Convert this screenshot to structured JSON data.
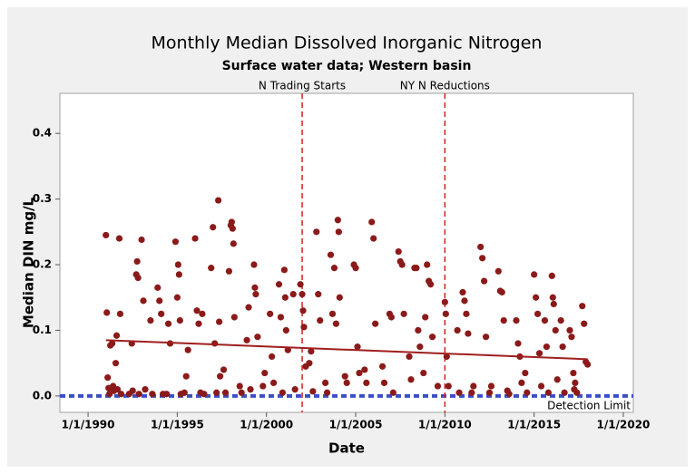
{
  "chart_data": {
    "type": "scatter",
    "title": "Monthly Median Dissolved Inorganic Nitrogen",
    "subtitle": "Surface water data; Western basin",
    "x_label": "Date",
    "y_label": "Median DIN mg/L",
    "xlim": [
      1988.42,
      2020.56
    ],
    "ylim": [
      -0.025,
      0.461
    ],
    "xticks": [
      {
        "value": 1990,
        "label": "1/1/1990"
      },
      {
        "value": 1995,
        "label": "1/1/1995"
      },
      {
        "value": 2000,
        "label": "1/1/2000"
      },
      {
        "value": 2005,
        "label": "1/1/2005"
      },
      {
        "value": 2010,
        "label": "1/1/2010"
      },
      {
        "value": 2015,
        "label": "1/1/2015"
      },
      {
        "value": 2020,
        "label": "1/1/2020"
      }
    ],
    "yticks": [
      {
        "value": 0,
        "label": "0.0"
      },
      0.1,
      0.2,
      0.3,
      0.4
    ],
    "grid": false,
    "series": [
      {
        "color": "#8b1a1a",
        "x": [
          1991.0,
          1991.05,
          1991.1,
          1991.15,
          1991.2,
          1991.25,
          1991.35,
          1991.4,
          1991.45,
          1991.55,
          1991.6,
          1991.65,
          1991.75,
          1991.8,
          1991.85,
          1992.3,
          1992.45,
          1992.5,
          1992.7,
          1992.75,
          1992.8,
          1992.85,
          1993.0,
          1993.1,
          1993.2,
          1993.5,
          1993.6,
          1993.9,
          1994.0,
          1994.1,
          1994.2,
          1994.4,
          1994.5,
          1994.6,
          1994.9,
          1995.0,
          1995.05,
          1995.1,
          1995.15,
          1995.2,
          1995.4,
          1995.5,
          1995.6,
          1996.0,
          1996.1,
          1996.2,
          1996.3,
          1996.4,
          1996.5,
          1996.9,
          1997.0,
          1997.1,
          1997.2,
          1997.3,
          1997.35,
          1997.4,
          1997.6,
          1997.7,
          1997.9,
          1998.0,
          1998.05,
          1998.1,
          1998.15,
          1998.2,
          1998.5,
          1998.6,
          1998.9,
          1999.0,
          1999.1,
          1999.3,
          1999.35,
          1999.4,
          1999.5,
          1999.8,
          1999.9,
          2000.2,
          2000.3,
          2000.4,
          2000.7,
          2000.8,
          2000.9,
          2001.0,
          2001.05,
          2001.1,
          2001.2,
          2001.5,
          2001.6,
          2001.9,
          2002.0,
          2002.05,
          2002.1,
          2002.2,
          2002.4,
          2002.5,
          2002.6,
          2002.8,
          2002.9,
          2003.0,
          2003.3,
          2003.4,
          2003.6,
          2003.7,
          2003.8,
          2003.9,
          2004.0,
          2004.05,
          2004.1,
          2004.4,
          2004.5,
          2004.9,
          2005.0,
          2005.1,
          2005.2,
          2005.5,
          2005.6,
          2005.9,
          2006.0,
          2006.1,
          2006.5,
          2006.6,
          2006.9,
          2007.0,
          2007.1,
          2007.4,
          2007.5,
          2007.6,
          2007.7,
          2008.0,
          2008.1,
          2008.3,
          2008.4,
          2008.5,
          2008.6,
          2008.8,
          2008.9,
          2009.0,
          2009.1,
          2009.2,
          2009.3,
          2009.6,
          2010.0,
          2010.05,
          2010.1,
          2010.2,
          2010.7,
          2010.8,
          2011.0,
          2011.1,
          2011.2,
          2011.3,
          2011.5,
          2011.6,
          2012.0,
          2012.1,
          2012.2,
          2012.3,
          2012.5,
          2012.6,
          2013.0,
          2013.1,
          2013.2,
          2013.3,
          2013.5,
          2013.6,
          2014.0,
          2014.1,
          2014.2,
          2014.3,
          2014.5,
          2014.6,
          2015.0,
          2015.1,
          2015.2,
          2015.3,
          2015.4,
          2015.6,
          2015.7,
          2015.8,
          2016.0,
          2016.05,
          2016.1,
          2016.2,
          2016.3,
          2016.5,
          2016.6,
          2016.7,
          2017.0,
          2017.1,
          2017.2,
          2017.25,
          2017.3,
          2017.4,
          2017.7,
          2017.8,
          2017.9,
          2018.0
        ],
        "values": [
          0.245,
          0.127,
          0.028,
          0.012,
          0.003,
          0.077,
          0.08,
          0.015,
          0.008,
          0.05,
          0.092,
          0.01,
          0.24,
          0.125,
          0.003,
          0.003,
          0.08,
          0.008,
          0.185,
          0.205,
          0.18,
          0.003,
          0.238,
          0.145,
          0.01,
          0.115,
          0.003,
          0.165,
          0.145,
          0.125,
          0.003,
          0.003,
          0.11,
          0.08,
          0.235,
          0.15,
          0.2,
          0.185,
          0.115,
          0.003,
          0.005,
          0.03,
          0.07,
          0.24,
          0.13,
          0.11,
          0.005,
          0.125,
          0.003,
          0.195,
          0.257,
          0.08,
          0.005,
          0.298,
          0.113,
          0.03,
          0.04,
          0.005,
          0.19,
          0.26,
          0.265,
          0.255,
          0.232,
          0.12,
          0.015,
          0.005,
          0.085,
          0.135,
          0.01,
          0.2,
          0.165,
          0.155,
          0.09,
          0.015,
          0.035,
          0.125,
          0.06,
          0.02,
          0.17,
          0.12,
          0.005,
          0.192,
          0.15,
          0.1,
          0.07,
          0.155,
          0.01,
          0.17,
          0.155,
          0.13,
          0.105,
          0.045,
          0.05,
          0.068,
          0.007,
          0.25,
          0.155,
          0.115,
          0.02,
          0.005,
          0.215,
          0.125,
          0.195,
          0.11,
          0.268,
          0.25,
          0.15,
          0.03,
          0.02,
          0.2,
          0.195,
          0.075,
          0.035,
          0.04,
          0.02,
          0.265,
          0.24,
          0.11,
          0.045,
          0.02,
          0.125,
          0.12,
          0.005,
          0.22,
          0.205,
          0.2,
          0.125,
          0.06,
          0.025,
          0.195,
          0.195,
          0.1,
          0.075,
          0.035,
          0.12,
          0.2,
          0.175,
          0.17,
          0.09,
          0.015,
          0.143,
          0.125,
          0.06,
          0.015,
          0.1,
          0.005,
          0.158,
          0.145,
          0.125,
          0.095,
          0.005,
          0.015,
          0.227,
          0.21,
          0.175,
          0.09,
          0.005,
          0.015,
          0.19,
          0.16,
          0.158,
          0.115,
          0.008,
          0.003,
          0.115,
          0.08,
          0.06,
          0.02,
          0.035,
          0.005,
          0.185,
          0.15,
          0.125,
          0.065,
          0.015,
          0.115,
          0.075,
          0.005,
          0.183,
          0.15,
          0.14,
          0.1,
          0.025,
          0.115,
          0.075,
          0.005,
          0.1,
          0.09,
          0.035,
          0.01,
          0.02,
          0.005,
          0.137,
          0.11,
          0.052,
          0.048
        ]
      }
    ],
    "trend": {
      "color": "#a01e1e",
      "x": [
        1991,
        2018
      ],
      "values": [
        0.085,
        0.056
      ]
    },
    "reference_lines": [
      {
        "x": 2002,
        "label": "N Trading Starts",
        "color": "#d42020"
      },
      {
        "x": 2010,
        "label": "NY N Reductions",
        "color": "#d42020"
      }
    ],
    "detection_limit": {
      "y": 0,
      "label": "Detection Limit",
      "color": "#3a4fc4"
    }
  }
}
